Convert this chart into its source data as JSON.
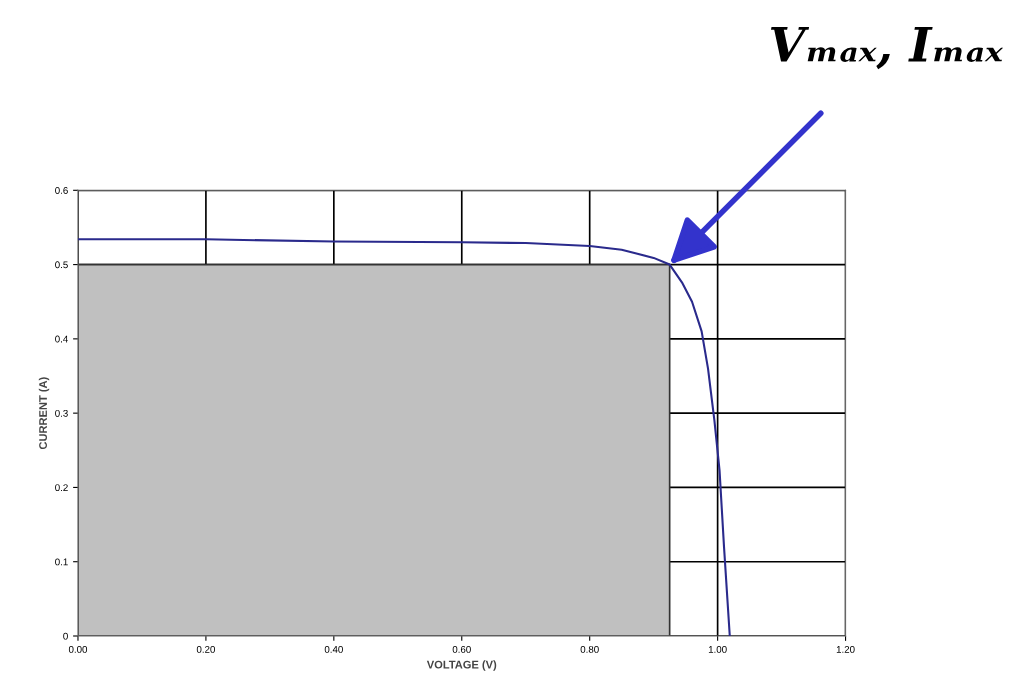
{
  "chart_data": {
    "type": "line",
    "xlabel": "VOLTAGE (V)",
    "ylabel": "CURRENT (A)",
    "xlim": [
      0,
      1.2
    ],
    "xticks": [
      {
        "value": 0,
        "label": "0.00"
      },
      {
        "value": 0.2,
        "label": "0.20"
      },
      {
        "value": 0.4,
        "label": "0.40"
      },
      {
        "value": 0.6,
        "label": "0.60"
      },
      {
        "value": 0.8,
        "label": "0.80"
      },
      {
        "value": 1.0,
        "label": "1.00"
      },
      {
        "value": 1.2,
        "label": "1.20"
      }
    ],
    "ylim": [
      0,
      0.6
    ],
    "yticks": [
      0,
      0.1,
      0.2,
      0.3,
      0.4,
      0.5,
      0.6
    ],
    "grid": true,
    "marker": "none",
    "line_style": "solid",
    "series": [
      {
        "type": "area",
        "color": "#c0c0c0",
        "x": [
          0,
          0.925
        ],
        "values": [
          0.5,
          0.5
        ]
      },
      {
        "color": "#2a2a8c",
        "x": [
          0,
          0.2,
          0.4,
          0.6,
          0.7,
          0.8,
          0.85,
          0.9,
          0.925,
          0.945,
          0.96,
          0.975,
          0.985,
          0.995,
          1.003,
          1.01,
          1.019
        ],
        "values": [
          0.534,
          0.534,
          0.531,
          0.53,
          0.529,
          0.525,
          0.52,
          0.509,
          0.5,
          0.475,
          0.45,
          0.41,
          0.36,
          0.29,
          0.223,
          0.12,
          0.0
        ]
      }
    ],
    "annotations": [
      {
        "text": "Vₘₐₓ, Iₘₐₓ",
        "x": 0.925,
        "y": 0.5
      }
    ]
  }
}
